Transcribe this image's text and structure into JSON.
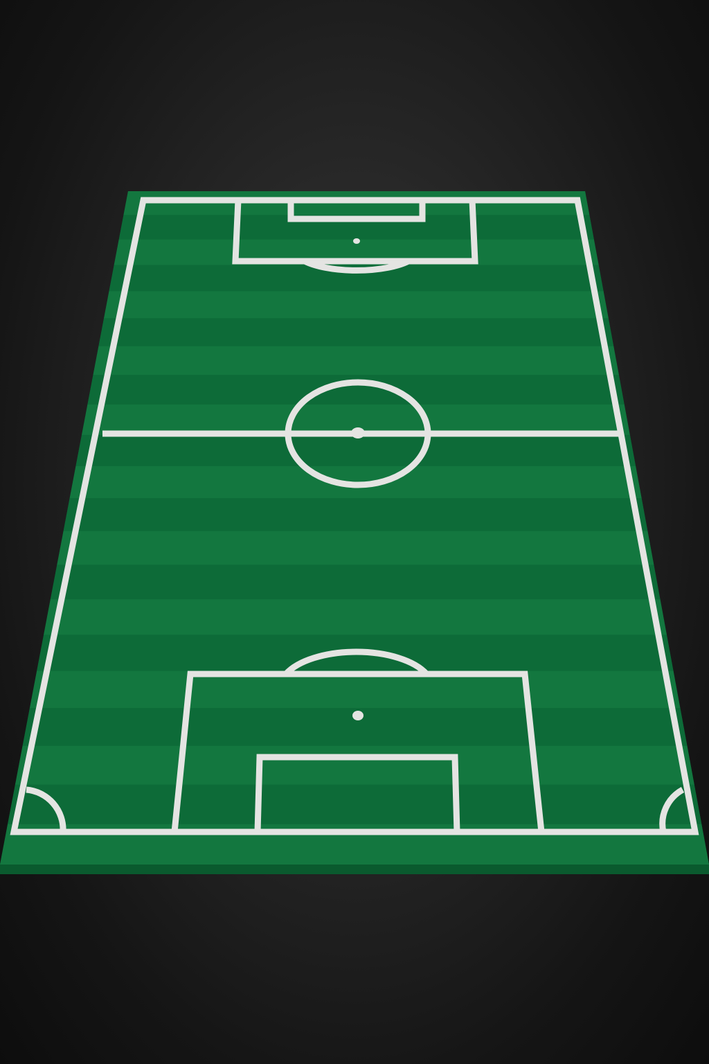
{
  "scene": {
    "description_label": "",
    "background_color": "#1b1b1b",
    "pitch": {
      "grass_dark": "#0d6b38",
      "grass_light": "#13773f",
      "edge_color": "#0a5a2e",
      "line_color": "#e4e4e2",
      "stripe_count": 21
    }
  }
}
